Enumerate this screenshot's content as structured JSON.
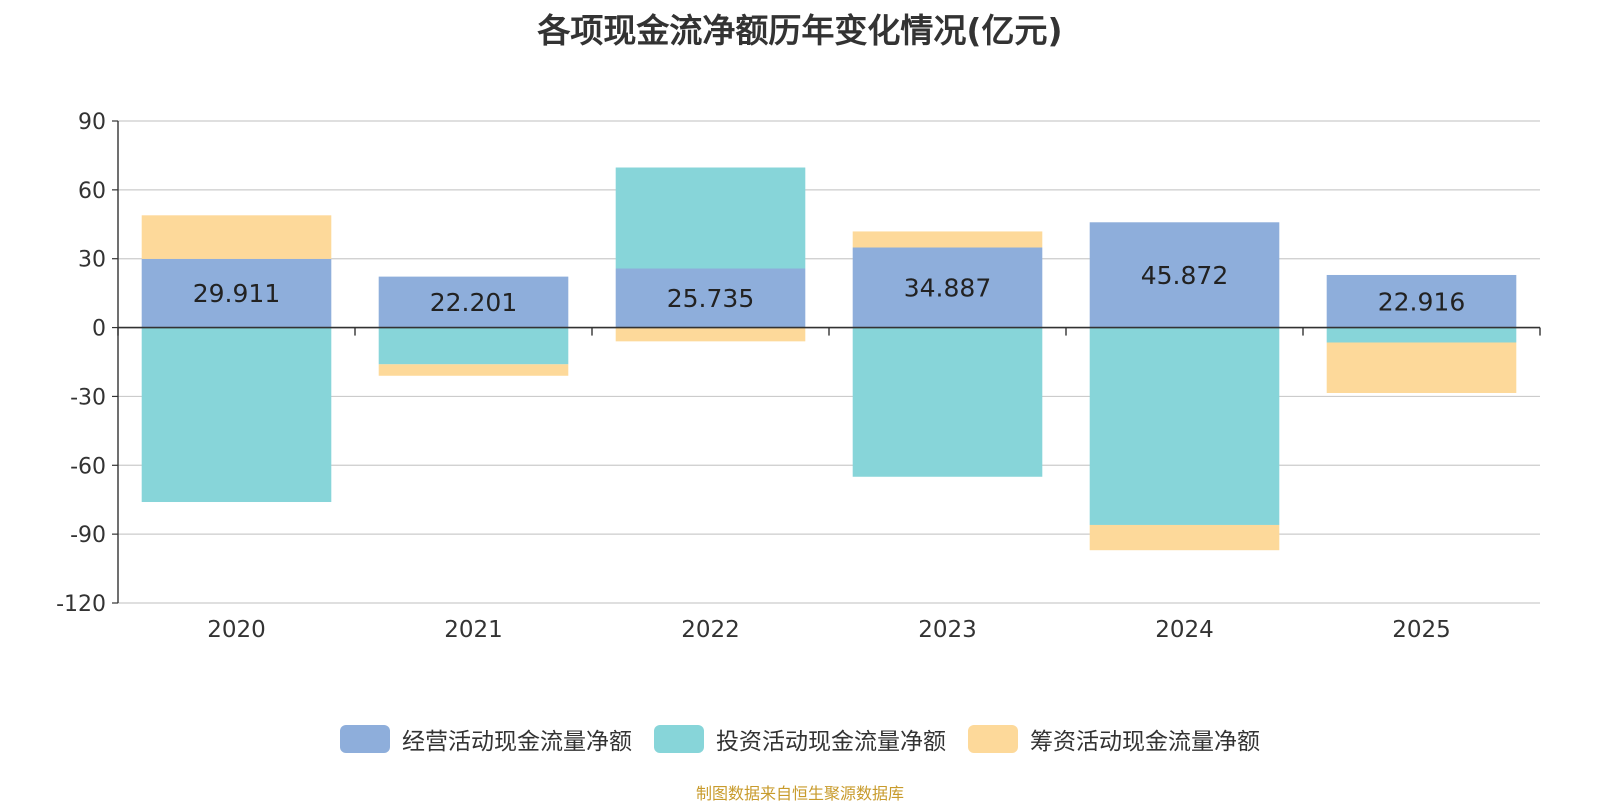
{
  "chart_data": {
    "type": "bar",
    "stacked": true,
    "title": "各项现金流净额历年变化情况(亿元)",
    "categories": [
      "2020",
      "2021",
      "2022",
      "2023",
      "2024",
      "2025"
    ],
    "ylim": [
      -120,
      90
    ],
    "yticks": [
      90,
      60,
      30,
      0,
      -30,
      -60,
      -90,
      -120
    ],
    "series": [
      {
        "name": "经营活动现金流量净额",
        "color": "#8eaedb",
        "values": [
          29.911,
          22.201,
          25.735,
          34.887,
          45.872,
          22.916
        ],
        "value_labels": [
          "29.911",
          "22.201",
          "25.735",
          "34.887",
          "45.872",
          "22.916"
        ]
      },
      {
        "name": "投资活动现金流量净额",
        "color": "#87d5d9",
        "values": [
          -76.0,
          -16.0,
          44.0,
          -65.0,
          -86.0,
          -6.5
        ]
      },
      {
        "name": "筹资活动现金流量净额",
        "color": "#fdd99a",
        "values": [
          19.0,
          -5.0,
          -6.0,
          7.0,
          -11.0,
          -22.0
        ]
      }
    ],
    "legend_position": "bottom-center"
  },
  "source": "制图数据来自恒生聚源数据库"
}
